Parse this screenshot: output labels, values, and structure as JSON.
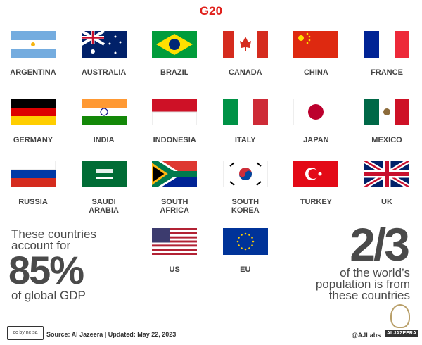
{
  "title": "G20",
  "countries": [
    "ARGENTINA",
    "AUSTRALIA",
    "BRAZIL",
    "CANADA",
    "CHINA",
    "FRANCE",
    "GERMANY",
    "INDIA",
    "INDONESIA",
    "ITALY",
    "JAPAN",
    "MEXICO",
    "RUSSIA",
    "SAUDI ARABIA",
    "SOUTH AFRICA",
    "SOUTH KOREA",
    "TURKEY",
    "UK",
    "US",
    "EU"
  ],
  "gdp": {
    "line1": "These countries",
    "line2": "account for",
    "value": "85%",
    "line3": "of global GDP"
  },
  "population": {
    "value": "2/3",
    "line1": "of the world’s",
    "line2": "population is from",
    "line3": "these countries"
  },
  "footer": {
    "license": "cc by nc sa",
    "source": "Source: Al Jazeera  |  Updated: May 22, 2023",
    "handle": "@AJLabs",
    "brand": "ALJAZEERA"
  },
  "colors": {
    "title": "#e0201b",
    "text": "#4a4a4a"
  }
}
